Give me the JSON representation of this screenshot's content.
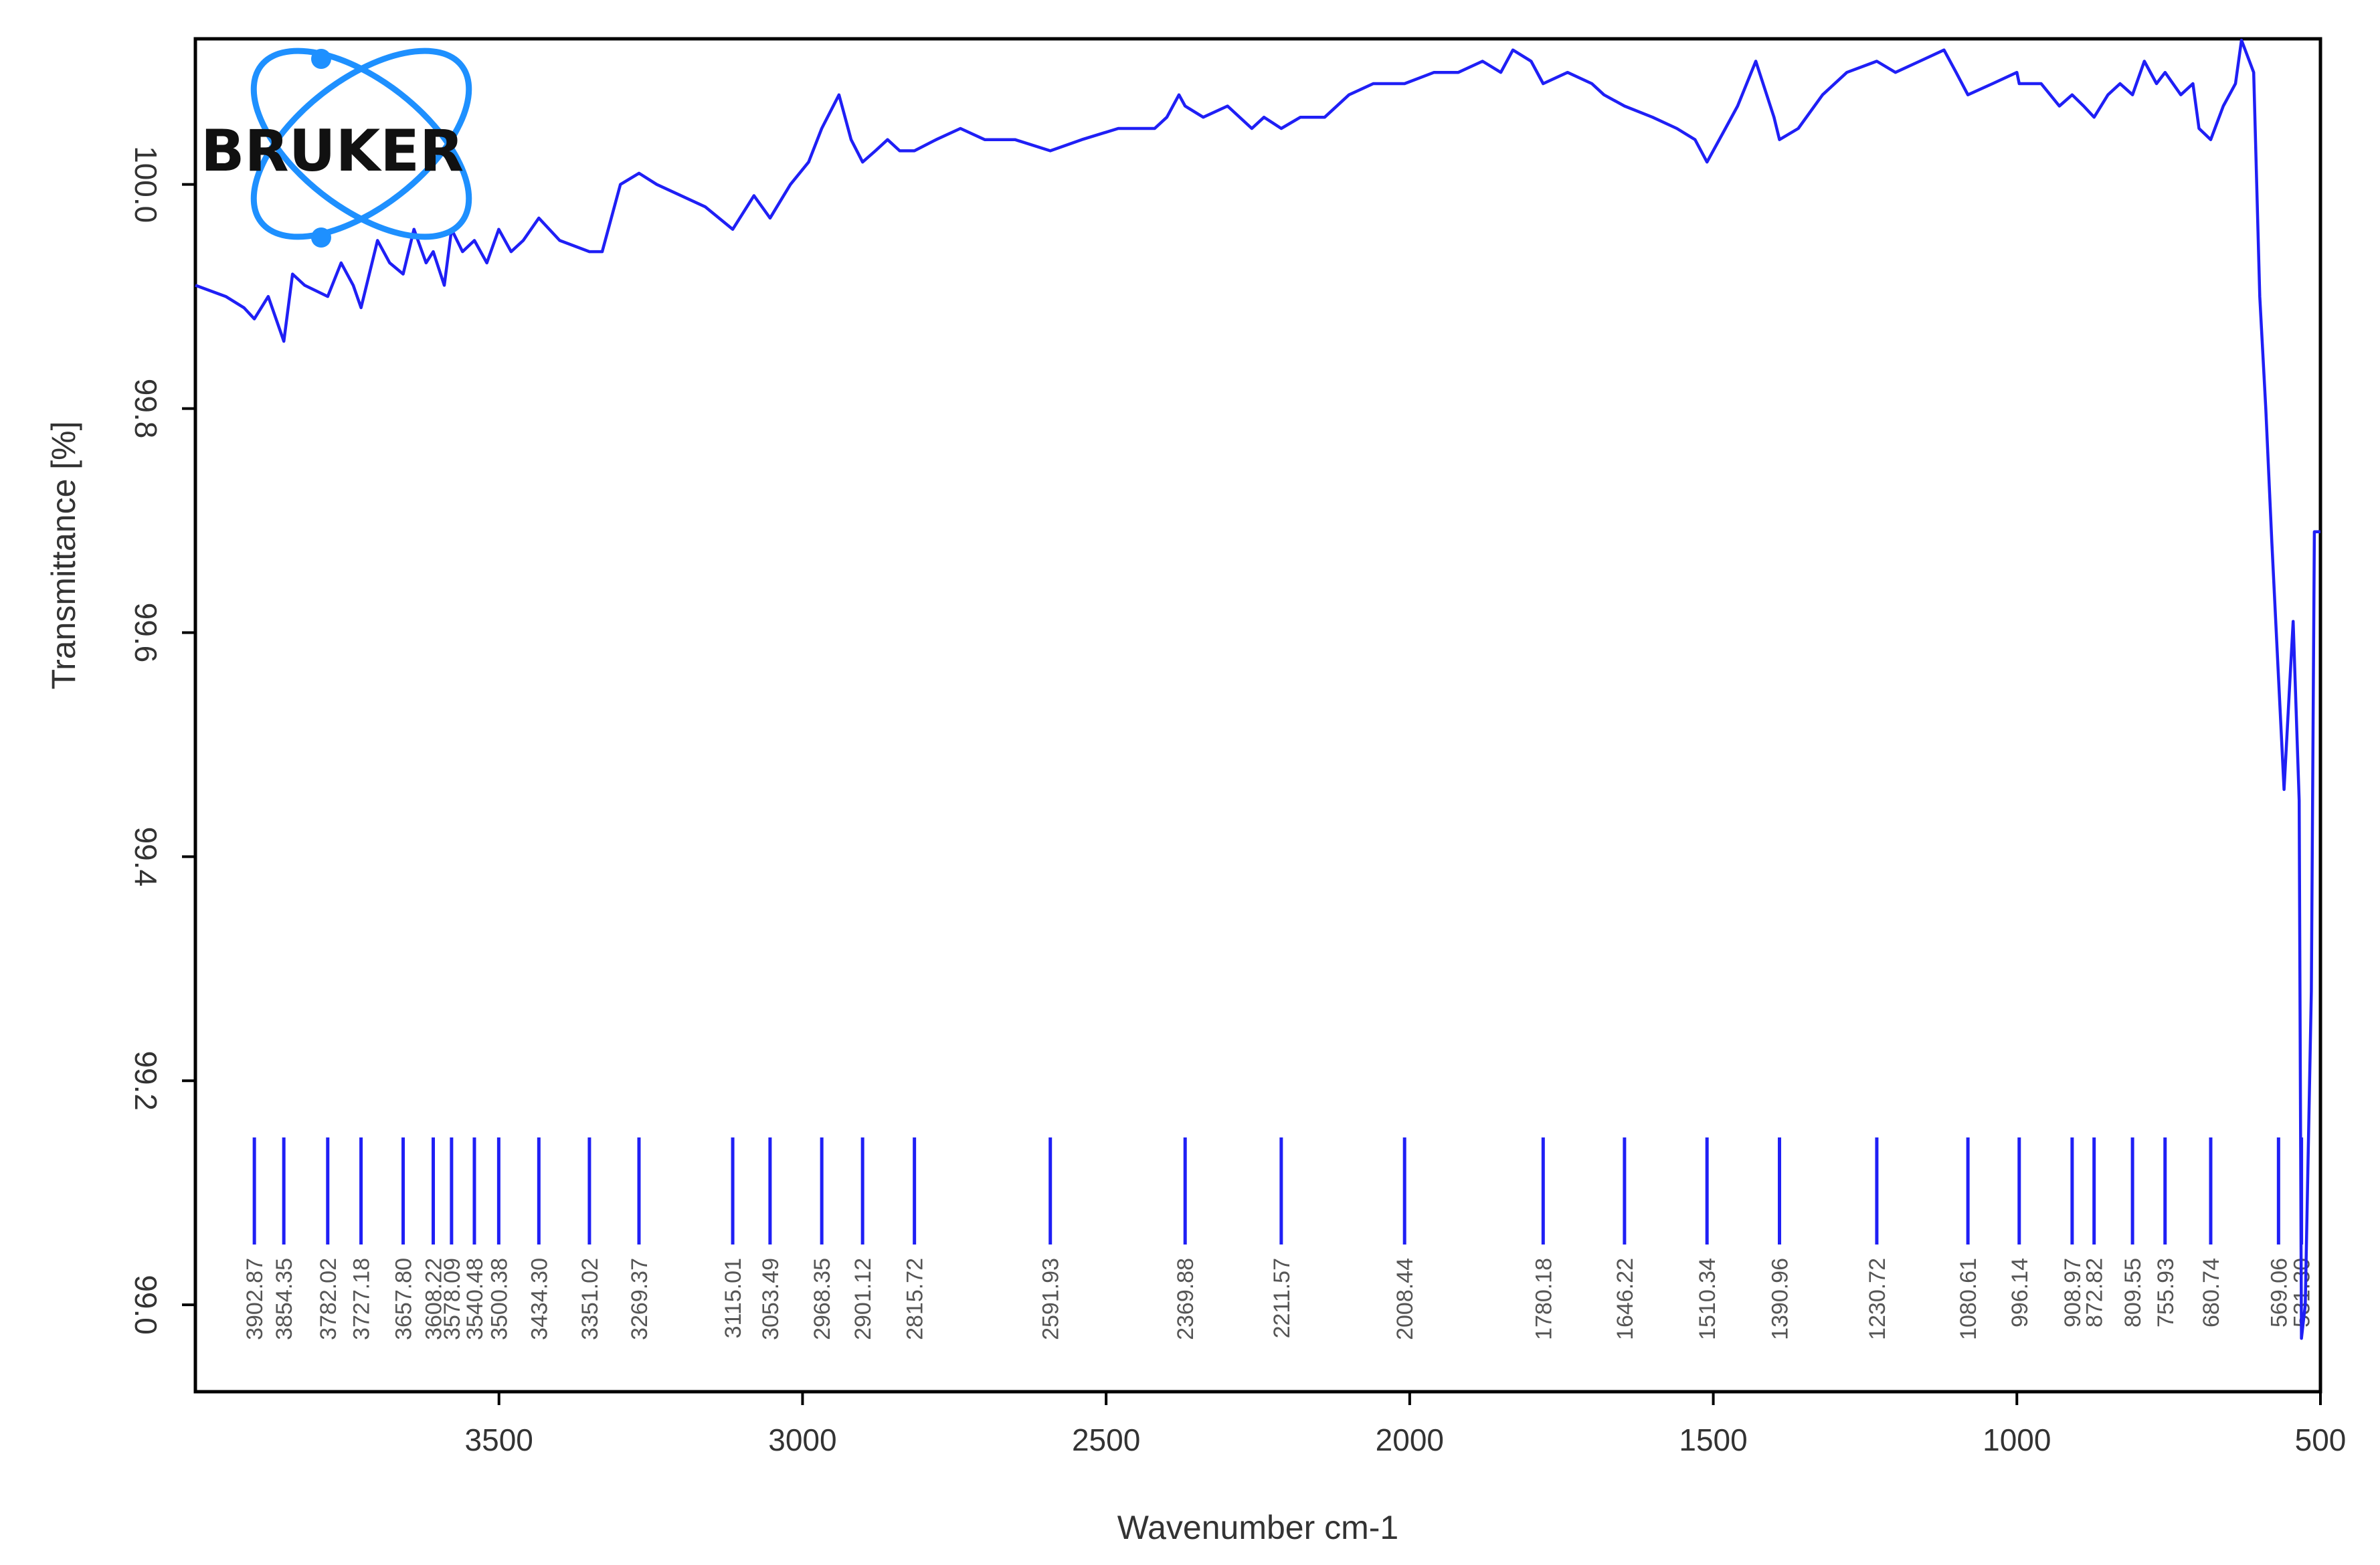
{
  "brand": {
    "logo_text": "BRUKER",
    "logo_color": "#1e90ff"
  },
  "colors": {
    "trace": "#1f1ff5",
    "peak_marker": "#1f1ff5",
    "frame": "#000000"
  },
  "chart_data": {
    "type": "line",
    "xlabel": "Wavenumber cm-1",
    "ylabel": "Transmittance [%]",
    "x_reversed": true,
    "xlim": [
      4000,
      500
    ],
    "ylim": [
      98.8,
      100.13
    ],
    "xticks": [
      {
        "value": 3500,
        "label": "3500"
      },
      {
        "value": 3000,
        "label": "3000"
      },
      {
        "value": 2500,
        "label": "2500"
      },
      {
        "value": 2000,
        "label": "2000"
      },
      {
        "value": 1500,
        "label": "1500"
      },
      {
        "value": 1000,
        "label": "1000"
      },
      {
        "value": 500,
        "label": "500"
      }
    ],
    "yticks": [
      {
        "value": 99.0,
        "label": "99.0"
      },
      {
        "value": 99.2,
        "label": "99.2"
      },
      {
        "value": 99.4,
        "label": "99.4"
      },
      {
        "value": 99.6,
        "label": "99.6"
      },
      {
        "value": 99.8,
        "label": "99.8"
      },
      {
        "value": 100.0,
        "label": "100.0"
      }
    ],
    "series": [
      {
        "x": [
          4000,
          3950,
          3920,
          3902.87,
          3880,
          3854.35,
          3840,
          3820,
          3782.02,
          3760,
          3740,
          3727.18,
          3700,
          3680,
          3657.8,
          3640,
          3620,
          3608.22,
          3590,
          3578.09,
          3560,
          3540.48,
          3520,
          3500.38,
          3480,
          3460,
          3434.3,
          3400,
          3351.02,
          3330,
          3300,
          3269.37,
          3240,
          3200,
          3160,
          3115.01,
          3080,
          3053.49,
          3020,
          2990,
          2968.35,
          2940,
          2920,
          2901.12,
          2880,
          2860,
          2840,
          2815.72,
          2780,
          2740,
          2700,
          2650,
          2591.93,
          2540,
          2480,
          2420,
          2400,
          2380,
          2369.88,
          2340,
          2300,
          2260,
          2240,
          2211.57,
          2180,
          2140,
          2100,
          2060,
          2008.44,
          1960,
          1920,
          1880,
          1850,
          1830,
          1800,
          1780.18,
          1740,
          1700,
          1680,
          1646.22,
          1600,
          1560,
          1530,
          1510.34,
          1480,
          1460,
          1430,
          1400,
          1390.96,
          1360,
          1320,
          1280,
          1230.72,
          1200,
          1160,
          1120,
          1100,
          1080.61,
          1040,
          1000,
          996.14,
          960,
          930,
          908.97,
          890,
          872.82,
          850,
          830,
          809.55,
          790,
          770,
          755.93,
          730,
          710,
          700,
          680.74,
          660,
          640,
          630,
          610,
          600,
          590,
          580,
          569.06,
          560,
          550,
          545,
          535,
          531.3,
          525,
          515,
          510,
          500
        ],
        "y": [
          99.91,
          99.9,
          99.89,
          99.88,
          99.9,
          99.86,
          99.92,
          99.91,
          99.9,
          99.93,
          99.91,
          99.89,
          99.95,
          99.93,
          99.92,
          99.96,
          99.93,
          99.94,
          99.91,
          99.96,
          99.94,
          99.95,
          99.93,
          99.96,
          99.94,
          99.95,
          99.97,
          99.95,
          99.94,
          99.94,
          100.0,
          100.01,
          100.0,
          99.99,
          99.98,
          99.96,
          99.99,
          99.97,
          100.0,
          100.02,
          100.05,
          100.08,
          100.04,
          100.02,
          100.03,
          100.04,
          100.03,
          100.03,
          100.04,
          100.05,
          100.04,
          100.04,
          100.03,
          100.04,
          100.05,
          100.05,
          100.06,
          100.08,
          100.07,
          100.06,
          100.07,
          100.05,
          100.06,
          100.05,
          100.06,
          100.06,
          100.08,
          100.09,
          100.09,
          100.1,
          100.1,
          100.11,
          100.1,
          100.12,
          100.11,
          100.09,
          100.1,
          100.09,
          100.08,
          100.07,
          100.06,
          100.05,
          100.04,
          100.02,
          100.05,
          100.07,
          100.11,
          100.06,
          100.04,
          100.05,
          100.08,
          100.1,
          100.11,
          100.1,
          100.11,
          100.12,
          100.1,
          100.08,
          100.09,
          100.1,
          100.09,
          100.09,
          100.07,
          100.08,
          100.07,
          100.06,
          100.08,
          100.09,
          100.08,
          100.11,
          100.09,
          100.1,
          100.08,
          100.09,
          100.05,
          100.04,
          100.07,
          100.09,
          100.13,
          100.1,
          99.9,
          99.8,
          99.68,
          99.56,
          99.46,
          99.56,
          99.61,
          99.45,
          98.97,
          99.0,
          99.28,
          99.69,
          99.69
        ]
      }
    ],
    "peaks": [
      {
        "x": 3902.87,
        "label": "3902.87"
      },
      {
        "x": 3854.35,
        "label": "3854.35"
      },
      {
        "x": 3782.02,
        "label": "3782.02"
      },
      {
        "x": 3727.18,
        "label": "3727.18"
      },
      {
        "x": 3657.8,
        "label": "3657.80"
      },
      {
        "x": 3608.22,
        "label": "3608.22"
      },
      {
        "x": 3578.09,
        "label": "3578.09"
      },
      {
        "x": 3540.48,
        "label": "3540.48"
      },
      {
        "x": 3500.38,
        "label": "3500.38"
      },
      {
        "x": 3434.3,
        "label": "3434.30"
      },
      {
        "x": 3351.02,
        "label": "3351.02"
      },
      {
        "x": 3269.37,
        "label": "3269.37"
      },
      {
        "x": 3115.01,
        "label": "3115.01"
      },
      {
        "x": 3053.49,
        "label": "3053.49"
      },
      {
        "x": 2968.35,
        "label": "2968.35"
      },
      {
        "x": 2901.12,
        "label": "2901.12"
      },
      {
        "x": 2815.72,
        "label": "2815.72"
      },
      {
        "x": 2591.93,
        "label": "2591.93"
      },
      {
        "x": 2369.88,
        "label": "2369.88"
      },
      {
        "x": 2211.57,
        "label": "2211.57"
      },
      {
        "x": 2008.44,
        "label": "2008.44"
      },
      {
        "x": 1780.18,
        "label": "1780.18"
      },
      {
        "x": 1646.22,
        "label": "1646.22"
      },
      {
        "x": 1510.34,
        "label": "1510.34"
      },
      {
        "x": 1390.96,
        "label": "1390.96"
      },
      {
        "x": 1230.72,
        "label": "1230.72"
      },
      {
        "x": 1080.61,
        "label": "1080.61"
      },
      {
        "x": 996.14,
        "label": "996.14"
      },
      {
        "x": 908.97,
        "label": "908.97"
      },
      {
        "x": 872.82,
        "label": "872.82"
      },
      {
        "x": 809.55,
        "label": "809.55"
      },
      {
        "x": 755.93,
        "label": "755.93"
      },
      {
        "x": 680.74,
        "label": "680.74"
      },
      {
        "x": 569.06,
        "label": "569.06"
      },
      {
        "x": 531.3,
        "label": "531.30"
      }
    ],
    "grid": false,
    "legend": "none"
  }
}
